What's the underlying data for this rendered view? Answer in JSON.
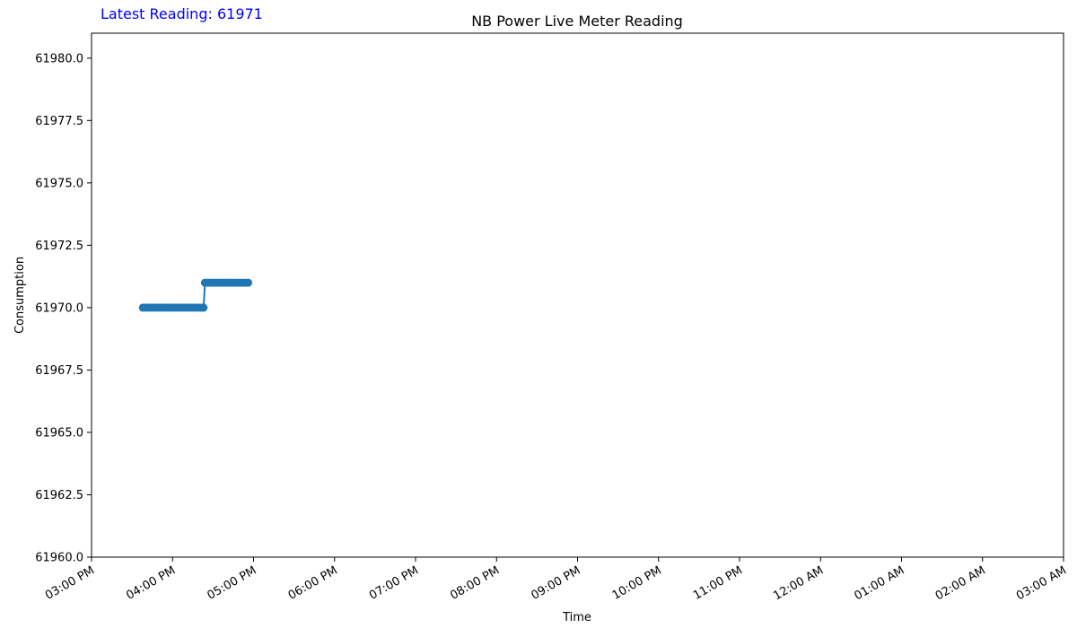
{
  "latest_reading": {
    "label": "Latest Reading: 61971",
    "color": "#0000ff"
  },
  "chart_data": {
    "type": "line",
    "title": "NB Power Live Meter Reading",
    "xlabel": "Time",
    "ylabel": "Consumption",
    "x_range": [
      "03:00 PM",
      "03:00 AM"
    ],
    "ylim": [
      61960.0,
      61981.0
    ],
    "x_tick_labels": [
      "03:00 PM",
      "04:00 PM",
      "05:00 PM",
      "06:00 PM",
      "07:00 PM",
      "08:00 PM",
      "09:00 PM",
      "10:00 PM",
      "11:00 PM",
      "12:00 AM",
      "01:00 AM",
      "02:00 AM",
      "03:00 AM"
    ],
    "y_ticks": [
      61960.0,
      61962.5,
      61965.0,
      61967.5,
      61970.0,
      61972.5,
      61975.0,
      61977.5,
      61980.0
    ],
    "y_tick_labels": [
      "61960.0",
      "61962.5",
      "61965.0",
      "61967.5",
      "61970.0",
      "61972.5",
      "61975.0",
      "61977.5",
      "61980.0"
    ],
    "grid": false,
    "series": [
      {
        "color": "#1f77b4",
        "points": [
          {
            "x": "03:38 PM",
            "y": 61970
          },
          {
            "x": "03:40 PM",
            "y": 61970
          },
          {
            "x": "03:42 PM",
            "y": 61970
          },
          {
            "x": "03:44 PM",
            "y": 61970
          },
          {
            "x": "03:46 PM",
            "y": 61970
          },
          {
            "x": "03:48 PM",
            "y": 61970
          },
          {
            "x": "03:50 PM",
            "y": 61970
          },
          {
            "x": "03:52 PM",
            "y": 61970
          },
          {
            "x": "03:54 PM",
            "y": 61970
          },
          {
            "x": "03:56 PM",
            "y": 61970
          },
          {
            "x": "03:58 PM",
            "y": 61970
          },
          {
            "x": "04:00 PM",
            "y": 61970
          },
          {
            "x": "04:02 PM",
            "y": 61970
          },
          {
            "x": "04:04 PM",
            "y": 61970
          },
          {
            "x": "04:06 PM",
            "y": 61970
          },
          {
            "x": "04:08 PM",
            "y": 61970
          },
          {
            "x": "04:10 PM",
            "y": 61970
          },
          {
            "x": "04:12 PM",
            "y": 61970
          },
          {
            "x": "04:14 PM",
            "y": 61970
          },
          {
            "x": "04:16 PM",
            "y": 61970
          },
          {
            "x": "04:18 PM",
            "y": 61970
          },
          {
            "x": "04:20 PM",
            "y": 61970
          },
          {
            "x": "04:22 PM",
            "y": 61970
          },
          {
            "x": "04:23 PM",
            "y": 61970
          },
          {
            "x": "04:24 PM",
            "y": 61971
          },
          {
            "x": "04:26 PM",
            "y": 61971
          },
          {
            "x": "04:28 PM",
            "y": 61971
          },
          {
            "x": "04:30 PM",
            "y": 61971
          },
          {
            "x": "04:32 PM",
            "y": 61971
          },
          {
            "x": "04:34 PM",
            "y": 61971
          },
          {
            "x": "04:36 PM",
            "y": 61971
          },
          {
            "x": "04:38 PM",
            "y": 61971
          },
          {
            "x": "04:40 PM",
            "y": 61971
          },
          {
            "x": "04:42 PM",
            "y": 61971
          },
          {
            "x": "04:44 PM",
            "y": 61971
          },
          {
            "x": "04:46 PM",
            "y": 61971
          },
          {
            "x": "04:48 PM",
            "y": 61971
          },
          {
            "x": "04:50 PM",
            "y": 61971
          },
          {
            "x": "04:52 PM",
            "y": 61971
          },
          {
            "x": "04:54 PM",
            "y": 61971
          },
          {
            "x": "04:56 PM",
            "y": 61971
          }
        ]
      }
    ]
  }
}
